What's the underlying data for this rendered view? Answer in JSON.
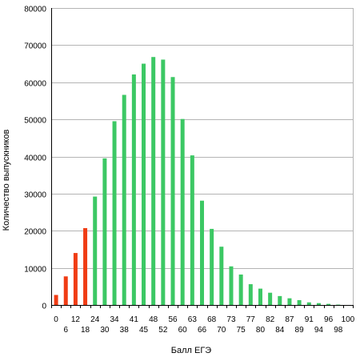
{
  "chart_data": {
    "type": "bar",
    "xlabel": "Балл ЕГЭ",
    "ylabel": "Количество выпускников",
    "ylim": [
      0,
      80000
    ],
    "yticks": [
      0,
      10000,
      20000,
      30000,
      40000,
      50000,
      60000,
      70000,
      80000
    ],
    "grid": "horizontal",
    "legend": "none",
    "colors": {
      "below_threshold": "#f03c14",
      "above_threshold": "#3cc864",
      "grid": "#b4b4b4"
    },
    "categories": [
      "0",
      "6",
      "12",
      "18",
      "24",
      "30",
      "34",
      "38",
      "41",
      "45",
      "48",
      "52",
      "56",
      "60",
      "63",
      "66",
      "68",
      "70",
      "73",
      "75",
      "77",
      "80",
      "82",
      "84",
      "87",
      "89",
      "91",
      "94",
      "96",
      "98",
      "100"
    ],
    "values": [
      2700,
      7700,
      14000,
      20700,
      29200,
      39500,
      49500,
      56600,
      62100,
      65000,
      66800,
      66100,
      61400,
      50100,
      40300,
      28100,
      20500,
      15700,
      10400,
      8200,
      5600,
      4400,
      3300,
      2400,
      1800,
      1300,
      700,
      500,
      300,
      100,
      0
    ],
    "highlight": [
      true,
      true,
      true,
      true,
      false,
      false,
      false,
      false,
      false,
      false,
      false,
      false,
      false,
      false,
      false,
      false,
      false,
      false,
      false,
      false,
      false,
      false,
      false,
      false,
      false,
      false,
      false,
      false,
      false,
      false,
      false
    ]
  }
}
